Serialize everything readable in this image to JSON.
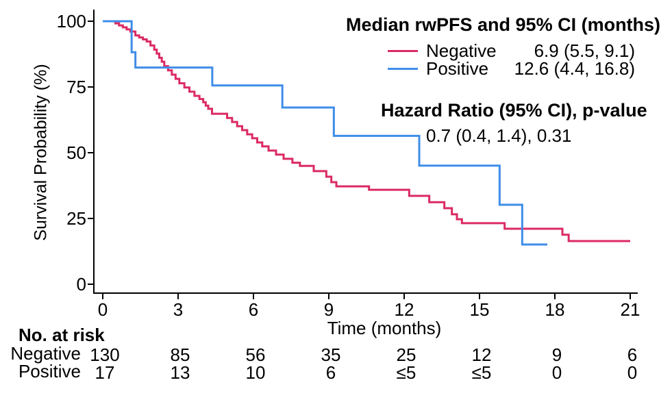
{
  "legend": {
    "title": "Median rwPFS and 95% CI (months)",
    "items": [
      {
        "label": "Negative",
        "value": "6.9 (5.5, 9.1)",
        "color": "#DB2A63"
      },
      {
        "label": "Positive",
        "value": "12.6 (4.4, 16.8)",
        "color": "#3E8DE8"
      }
    ],
    "hr_title": "Hazard Ratio (95% CI), p-value",
    "hr_value": "0.7 (0.4, 1.4), 0.31"
  },
  "risk_table": {
    "title": "No. at risk",
    "rows": [
      {
        "label": "Negative",
        "counts": [
          "130",
          "85",
          "56",
          "35",
          "25",
          "12",
          "9",
          "6"
        ]
      },
      {
        "label": "Positive",
        "counts": [
          "17",
          "13",
          "10",
          "6",
          "≤5",
          "≤5",
          "0",
          "0"
        ]
      }
    ]
  },
  "chart_data": {
    "type": "line",
    "subtype": "kaplan-meier-step",
    "title": "",
    "xlabel": "Time (months)",
    "ylabel": "Survival Probability (%)",
    "xlim": [
      0,
      21
    ],
    "ylim": [
      0,
      100
    ],
    "x_ticks": [
      0,
      3,
      6,
      9,
      12,
      15,
      18,
      21
    ],
    "y_ticks": [
      0,
      25,
      50,
      75,
      100
    ],
    "grid": false,
    "legend_position": "top-right",
    "axis_color": "#000000",
    "series": [
      {
        "name": "Negative",
        "color": "#DB2A63",
        "start": [
          0,
          100
        ],
        "end_time": 21.0,
        "steps": [
          [
            0.5,
            99.2
          ],
          [
            0.65,
            98.4
          ],
          [
            0.8,
            97.7
          ],
          [
            0.95,
            96.9
          ],
          [
            1.1,
            96.1
          ],
          [
            1.3,
            94.6
          ],
          [
            1.45,
            93.8
          ],
          [
            1.6,
            93.1
          ],
          [
            1.75,
            92.3
          ],
          [
            1.9,
            90.8
          ],
          [
            2.05,
            89.2
          ],
          [
            2.15,
            87.7
          ],
          [
            2.25,
            86.1
          ],
          [
            2.35,
            84.6
          ],
          [
            2.45,
            82.9
          ],
          [
            2.6,
            81.3
          ],
          [
            2.75,
            79.7
          ],
          [
            2.9,
            78.1
          ],
          [
            3.05,
            76.4
          ],
          [
            3.25,
            74.8
          ],
          [
            3.45,
            73.2
          ],
          [
            3.65,
            71.6
          ],
          [
            3.85,
            70.4
          ],
          [
            4.0,
            69.2
          ],
          [
            4.1,
            67.9
          ],
          [
            4.2,
            66.7
          ],
          [
            4.35,
            64.8
          ],
          [
            4.95,
            63.2
          ],
          [
            5.15,
            61.7
          ],
          [
            5.35,
            60.1
          ],
          [
            5.55,
            58.6
          ],
          [
            5.75,
            57.0
          ],
          [
            5.95,
            55.5
          ],
          [
            6.15,
            53.9
          ],
          [
            6.35,
            52.4
          ],
          [
            6.6,
            50.8
          ],
          [
            6.9,
            49.3
          ],
          [
            7.2,
            47.7
          ],
          [
            7.55,
            46.2
          ],
          [
            7.85,
            45.0
          ],
          [
            8.4,
            43.0
          ],
          [
            8.9,
            40.9
          ],
          [
            9.1,
            38.8
          ],
          [
            9.3,
            37.2
          ],
          [
            10.6,
            35.9
          ],
          [
            12.2,
            33.6
          ],
          [
            13.0,
            31.2
          ],
          [
            13.6,
            28.9
          ],
          [
            13.9,
            26.6
          ],
          [
            14.1,
            24.7
          ],
          [
            14.3,
            23.2
          ],
          [
            16.0,
            21.1
          ],
          [
            18.3,
            18.8
          ],
          [
            18.55,
            16.4
          ]
        ]
      },
      {
        "name": "Positive",
        "color": "#3E8DE8",
        "start": [
          0,
          100
        ],
        "end_time": 17.7,
        "steps": [
          [
            1.15,
            88.2
          ],
          [
            1.3,
            82.4
          ],
          [
            4.36,
            75.6
          ],
          [
            7.15,
            67.2
          ],
          [
            9.2,
            56.4
          ],
          [
            12.6,
            45.1
          ],
          [
            15.8,
            30.2
          ],
          [
            16.7,
            15.1
          ]
        ]
      }
    ]
  }
}
